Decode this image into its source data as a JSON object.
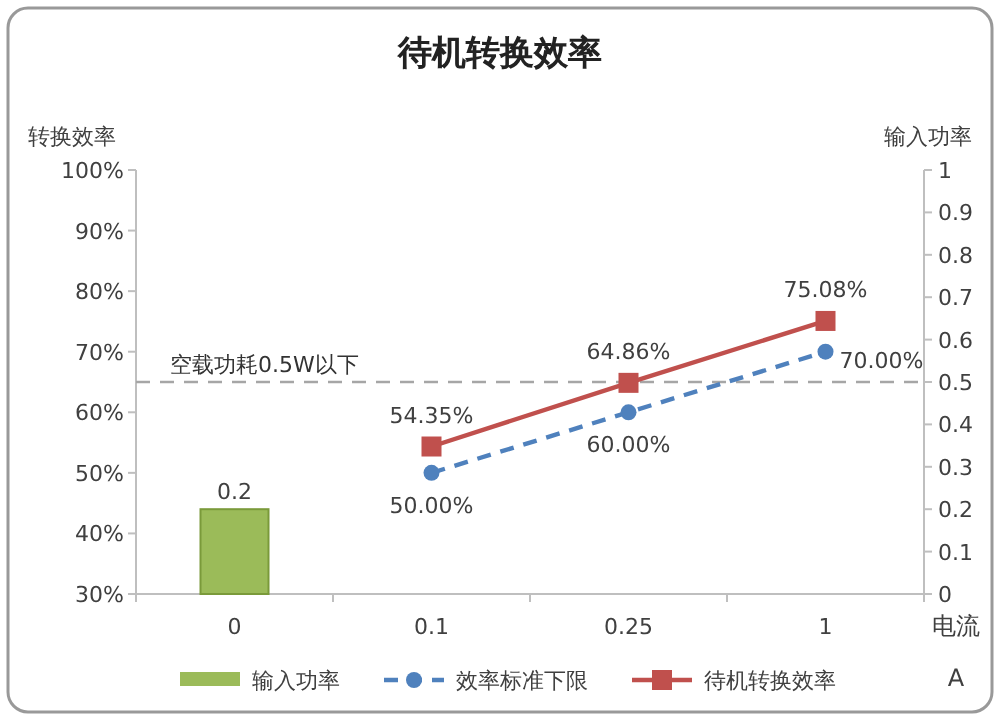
{
  "chart_data": {
    "type": "bar",
    "title": "待机转换效率",
    "xlabel": "电流\nA",
    "ylabel": "转换效率",
    "y2label": "输入功率",
    "categories": [
      "0",
      "0.1",
      "0.25",
      "1"
    ],
    "series": [
      {
        "name": "输入功率",
        "axis": "y2",
        "color": "#9bbb59",
        "values": [
          0.2,
          null,
          null,
          null
        ],
        "value_labels": [
          "0.2",
          null,
          null,
          null
        ]
      },
      {
        "name": "效率标准下限",
        "type": "line",
        "color": "#4f81bd",
        "marker": "circle",
        "line_style": "dashed",
        "values": [
          null,
          50.0,
          60.0,
          70.0
        ],
        "value_labels": [
          null,
          "50.00%",
          "60.00%",
          "70.00%"
        ]
      },
      {
        "name": "待机转换效率",
        "type": "line",
        "color": "#c0504d",
        "marker": "square",
        "line_style": "solid",
        "values": [
          null,
          54.35,
          64.86,
          75.08
        ],
        "value_labels": [
          null,
          "54.35%",
          "64.86%",
          "75.08%"
        ]
      }
    ],
    "ylim": [
      30,
      100
    ],
    "yticks": [
      {
        "value": 30,
        "label": "30%"
      },
      {
        "value": 40,
        "label": "40%"
      },
      {
        "value": 50,
        "label": "50%"
      },
      {
        "value": 60,
        "label": "60%"
      },
      {
        "value": 70,
        "label": "70%"
      },
      {
        "value": 80,
        "label": "80%"
      },
      {
        "value": 90,
        "label": "90%"
      },
      {
        "value": 100,
        "label": "100%"
      }
    ],
    "y2lim": [
      0,
      1
    ],
    "y2ticks": [
      0,
      0.1,
      0.2,
      0.3,
      0.4,
      0.5,
      0.6,
      0.7,
      0.8,
      0.9,
      1
    ],
    "ref_lines": [
      {
        "axis": "y2",
        "value": 0.5,
        "label": "空载功耗0.5W以下",
        "color": "#a6a6a6",
        "line_style": "dashed"
      }
    ],
    "legend": "bottom",
    "grid": false
  }
}
